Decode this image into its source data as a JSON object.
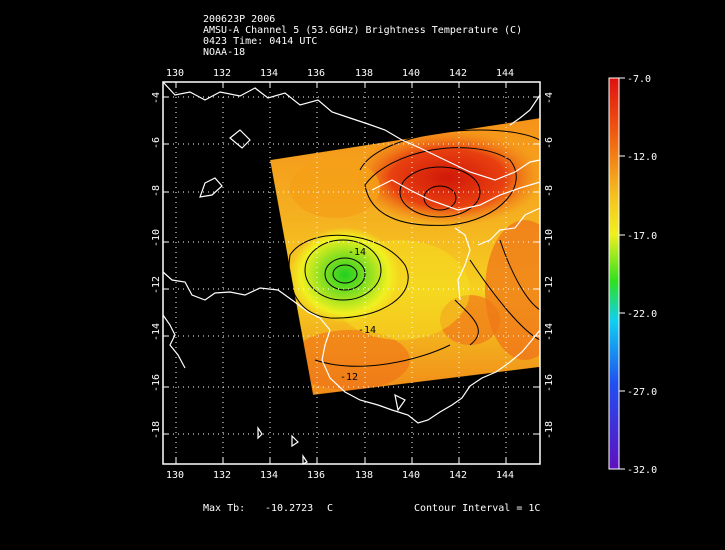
{
  "header": {
    "line1": "200623P 2006",
    "line2": "AMSU-A Channel 5 (53.6GHz) Brightness Temperature (C)",
    "line3": "0423 Time: 0414 UTC",
    "line4": "NOAA-18"
  },
  "map": {
    "lon_ticks": [
      "130",
      "132",
      "134",
      "136",
      "138",
      "140",
      "142",
      "144"
    ],
    "lat_ticks": [
      "-4",
      "-6",
      "-8",
      "-10",
      "-12",
      "-14",
      "-16",
      "-18"
    ],
    "contour_labels": [
      "-14",
      "-14",
      "-12"
    ],
    "land_color": "#ffffff",
    "background_color": "#000000"
  },
  "colorbar": {
    "ticks": [
      "-7.0",
      "-12.0",
      "-17.0",
      "-22.0",
      "-27.0",
      "-32.0"
    ],
    "colors": [
      "#e01010",
      "#f06010",
      "#f5c020",
      "#f0f020",
      "#30e020",
      "#10d0f0",
      "#2050f0",
      "#6010c0"
    ]
  },
  "footer": {
    "max_label": "Max Tb:",
    "max_value": "-10.2723",
    "max_unit": "C",
    "contour_text": "Contour Interval = 1C"
  }
}
